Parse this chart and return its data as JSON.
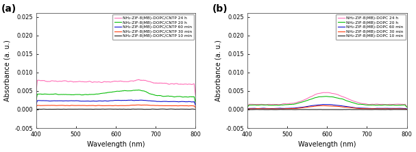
{
  "fig_width": 6.07,
  "fig_height": 2.22,
  "dpi": 100,
  "xlim": [
    400,
    800
  ],
  "ylim": [
    -0.005,
    0.026
  ],
  "yticks": [
    -0.005,
    0.0,
    0.005,
    0.01,
    0.015,
    0.02,
    0.025
  ],
  "xticks": [
    400,
    500,
    600,
    700,
    800
  ],
  "xlabel": "Wavelength (nm)",
  "ylabel": "Absorbance (a. u.)",
  "panel_a_label": "(a)",
  "panel_b_label": "(b)",
  "legend_a": [
    "NH₂-ZIF-8(MB)-DOPC/CNTP 24 h",
    "NH₂-ZIF-8(MB)-DOPC/CNTP 20 h",
    "NH₂-ZIF-8(MB)-DOPC/CNTP 60 min",
    "NH₂-ZIF-8(MB)-DOPC/CNTP 30 min",
    "NH₂-ZIF-8(MB)-DOPC/CNTP 10 min"
  ],
  "legend_b": [
    "NH₂-ZIF-8(MB)-DOPC 24 h",
    "NH₂-ZIF-8(MB)-DOPC 20 h",
    "NH₂-ZIF-8(MB)-DOPC 60 min",
    "NH₂-ZIF-8(MB)-DOPC 30 min",
    "NH₂-ZIF-8(MB)-DOPC 10 min"
  ],
  "colors": [
    "#FF69B4",
    "#00BB00",
    "#0000CC",
    "#FF3300",
    "#111111"
  ],
  "background": "#ffffff"
}
